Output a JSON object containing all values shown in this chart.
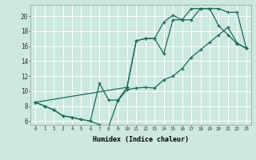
{
  "xlabel": "Humidex (Indice chaleur)",
  "bg_color": "#cce8e0",
  "grid_color": "#ffffff",
  "line_color": "#1a6b5a",
  "xlim": [
    -0.5,
    23.5
  ],
  "ylim": [
    5.5,
    21.5
  ],
  "yticks": [
    6,
    8,
    10,
    12,
    14,
    16,
    18,
    20
  ],
  "xticks": [
    0,
    1,
    2,
    3,
    4,
    5,
    6,
    7,
    8,
    9,
    10,
    11,
    12,
    13,
    14,
    15,
    16,
    17,
    18,
    19,
    20,
    21,
    22,
    23
  ],
  "line1_x": [
    0,
    1,
    2,
    3,
    4,
    5,
    6,
    7,
    8,
    9,
    10,
    11,
    12,
    13,
    14,
    15,
    16,
    17,
    18,
    19,
    20,
    21,
    22,
    23
  ],
  "line1_y": [
    8.5,
    8.0,
    7.5,
    6.7,
    6.5,
    6.2,
    6.0,
    5.5,
    5.3,
    8.7,
    10.2,
    10.4,
    10.5,
    10.4,
    11.5,
    12.0,
    13.0,
    14.5,
    15.5,
    16.5,
    17.5,
    18.5,
    16.4,
    15.7
  ],
  "line2_x": [
    0,
    1,
    2,
    3,
    4,
    5,
    6,
    7,
    8,
    9,
    10,
    11,
    12,
    13,
    14,
    15,
    16,
    17,
    18,
    19,
    20,
    21,
    22,
    23
  ],
  "line2_y": [
    8.5,
    8.0,
    7.5,
    6.7,
    6.5,
    6.2,
    6.0,
    11.0,
    8.8,
    8.8,
    10.5,
    16.7,
    17.0,
    17.0,
    19.2,
    20.1,
    19.5,
    21.0,
    21.0,
    21.0,
    18.7,
    17.5,
    16.3,
    15.7
  ],
  "line3_x": [
    0,
    10,
    11,
    12,
    13,
    14,
    15,
    16,
    17,
    18,
    19,
    20,
    21,
    22,
    23
  ],
  "line3_y": [
    8.5,
    10.5,
    16.7,
    17.0,
    17.0,
    15.0,
    19.5,
    19.5,
    19.5,
    21.0,
    21.0,
    21.0,
    20.5,
    20.5,
    15.7
  ]
}
